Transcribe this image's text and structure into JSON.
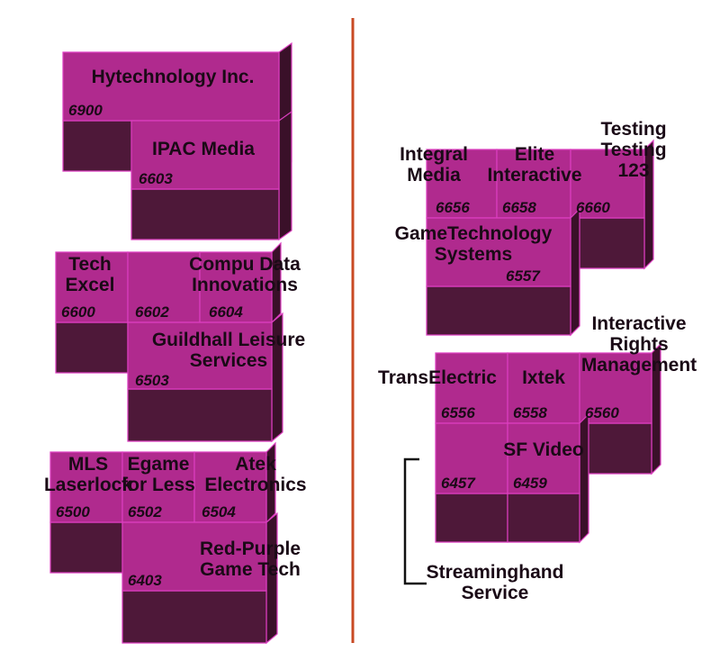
{
  "colors": {
    "top": "#b02a8e",
    "front": "#4e1839",
    "side": "#3a1029",
    "edge": "#dc3ec0",
    "divider": "#c94a24",
    "text": "#1a0a16",
    "callout": "#111111"
  },
  "units": {
    "u6900": {
      "name": [
        "Hytechnology Inc."
      ],
      "number": "6900"
    },
    "u6603": {
      "name": [
        "IPAC Media"
      ],
      "number": "6603"
    },
    "u6600": {
      "name": [
        "Tech",
        "Excel"
      ],
      "number": "6600"
    },
    "u6602": {
      "name": [],
      "number": "6602"
    },
    "u6604": {
      "name": [
        "Compu Data",
        "Innovations"
      ],
      "number": "6604"
    },
    "u6503": {
      "name": [
        "Guildhall Leisure",
        "Services"
      ],
      "number": "6503"
    },
    "u6500": {
      "name": [
        "MLS",
        "Laserlock"
      ],
      "number": "6500"
    },
    "u6502": {
      "name": [
        "Egame",
        "for Less"
      ],
      "number": "6502"
    },
    "u6504": {
      "name": [
        "Atek",
        "Electronics"
      ],
      "number": "6504"
    },
    "u6403": {
      "name": [
        "Red-Purple",
        "Game Tech"
      ],
      "number": "6403"
    },
    "u6656": {
      "name": [
        "Integral",
        "Media"
      ],
      "number": "6656"
    },
    "u6658": {
      "name": [
        "Elite",
        "Interactive"
      ],
      "number": "6658"
    },
    "u6660": {
      "name": [
        "Testing",
        "Testing",
        "123"
      ],
      "number": "6660"
    },
    "u6557": {
      "name": [
        "GameTechnology",
        "Systems"
      ],
      "number": "6557"
    },
    "u6556": {
      "name": [
        "TransElectric"
      ],
      "number": "6556"
    },
    "u6558": {
      "name": [
        "Ixtek"
      ],
      "number": "6558"
    },
    "u6560": {
      "name": [
        "Interactive",
        "Rights",
        "Management"
      ],
      "number": "6560"
    },
    "u6457": {
      "name": [],
      "number": "6457"
    },
    "u6459": {
      "name": [
        "SF Video"
      ],
      "number": "6459"
    },
    "callout_6457": {
      "name": [
        "Streaminghand",
        "Service"
      ]
    }
  }
}
